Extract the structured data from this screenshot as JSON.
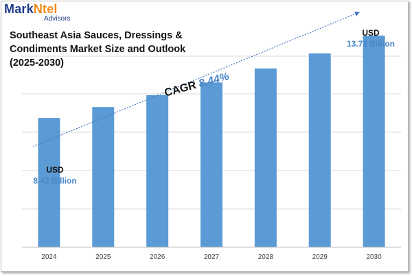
{
  "logo": {
    "main_a": "Mark",
    "main_b": "Ntel",
    "sub": "Advisors"
  },
  "title": "Southeast Asia Sauces, Dressings & Condiments Market Size and Outlook (2025-2030)",
  "callouts": {
    "first": {
      "label": "USD",
      "value": "8.42 Billion"
    },
    "last": {
      "label": "USD",
      "value": "13.78 Billion"
    }
  },
  "cagr": {
    "label": "CAGR",
    "value": "8.44%"
  },
  "colors": {
    "bar": "#5b9bd5",
    "accent": "#4a86c7",
    "grid": "#d9d9d9",
    "arrow": "#4472c4"
  },
  "chart_data": {
    "type": "bar",
    "categories": [
      "2024",
      "2025",
      "2026",
      "2027",
      "2028",
      "2029",
      "2030"
    ],
    "values": [
      8.42,
      9.13,
      9.9,
      10.73,
      11.64,
      12.62,
      13.78
    ],
    "title": "Southeast Asia Sauces, Dressings & Condiments Market Size and Outlook (2025-2030)",
    "xlabel": "",
    "ylabel": "",
    "grid": true,
    "legend": "none"
  }
}
